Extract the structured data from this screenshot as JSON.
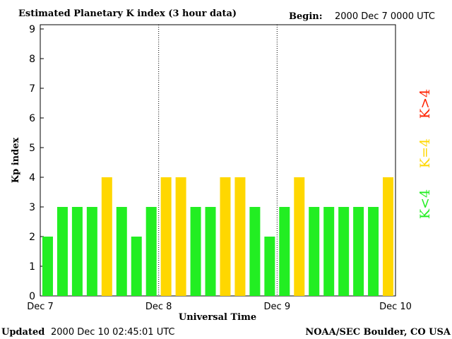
{
  "chart_data": {
    "type": "bar",
    "title": "Estimated Planetary K index (3 hour data)",
    "begin_label": "Begin:",
    "begin_value": "2000 Dec 7 0000 UTC",
    "ylabel": "Kp index",
    "xlabel": "Universal Time",
    "ylim": [
      0,
      9
    ],
    "yticks": [
      "0",
      "1",
      "2",
      "3",
      "4",
      "5",
      "6",
      "7",
      "8",
      "9"
    ],
    "xticks": [
      "Dec 7",
      "Dec 8",
      "Dec 9",
      "Dec 10"
    ],
    "grid": false,
    "day_separators": true,
    "values": [
      2,
      3,
      3,
      3,
      4,
      3,
      2,
      3,
      4,
      4,
      3,
      3,
      4,
      4,
      3,
      2,
      3,
      4,
      3,
      3,
      3,
      3,
      3,
      4
    ],
    "legend": [
      {
        "label": "K<4",
        "color": "#22ee22"
      },
      {
        "label": "K=4",
        "color": "#ffd700"
      },
      {
        "label": "K>4",
        "color": "#ff2200"
      }
    ],
    "colors": {
      "low": "#22ee22",
      "equal": "#ffd700",
      "high": "#ff2200"
    }
  },
  "footer": {
    "updated_label": "Updated",
    "updated_value": "2000 Dec 10 02:45:01 UTC",
    "credit": "NOAA/SEC Boulder, CO USA"
  }
}
